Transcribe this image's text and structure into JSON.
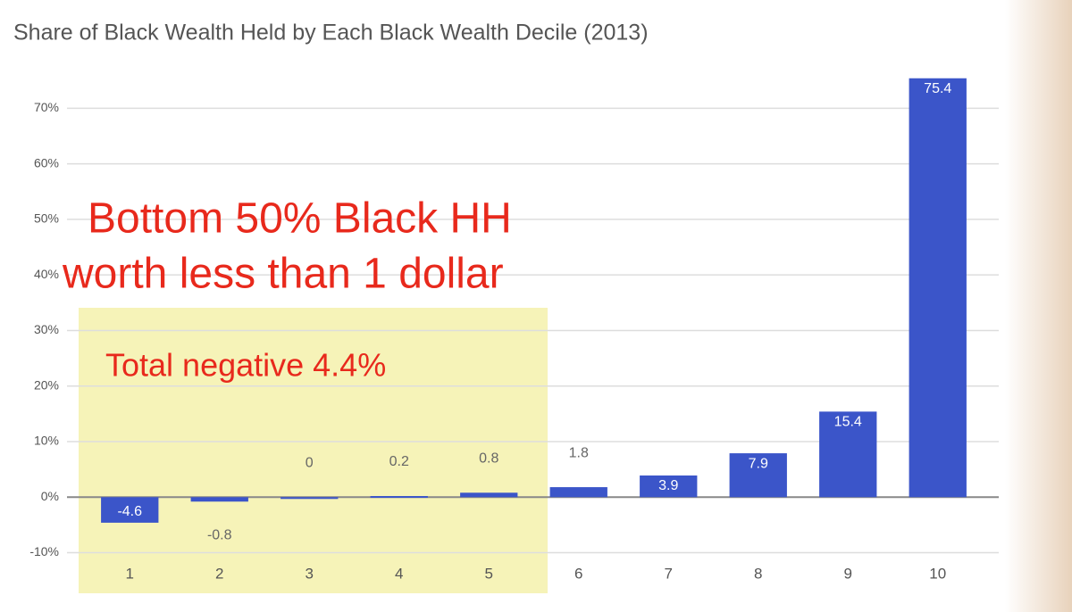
{
  "chart_data": {
    "type": "bar",
    "title": "Share of Black Wealth Held by Each Black Wealth Decile (2013)",
    "categories": [
      "1",
      "2",
      "3",
      "4",
      "5",
      "6",
      "7",
      "8",
      "9",
      "10"
    ],
    "values": [
      -4.6,
      -0.8,
      0,
      0.2,
      0.8,
      1.8,
      3.9,
      7.9,
      15.4,
      75.4
    ],
    "color": "#3b55c9",
    "ylim": [
      -12,
      76
    ],
    "yticks": [
      {
        "value": -10,
        "label": "-10%"
      },
      {
        "value": 0,
        "label": "0%"
      },
      {
        "value": 10,
        "label": "10%"
      },
      {
        "value": 20,
        "label": "20%"
      },
      {
        "value": 30,
        "label": "30%"
      },
      {
        "value": 40,
        "label": "40%"
      },
      {
        "value": 50,
        "label": "50%"
      },
      {
        "value": 60,
        "label": "60%"
      },
      {
        "value": 70,
        "label": "70%"
      }
    ],
    "grid": true,
    "annotations": [
      "Bottom 50% Black HH",
      "worth less than 1 dollar",
      "Total negative 4.4%"
    ]
  }
}
